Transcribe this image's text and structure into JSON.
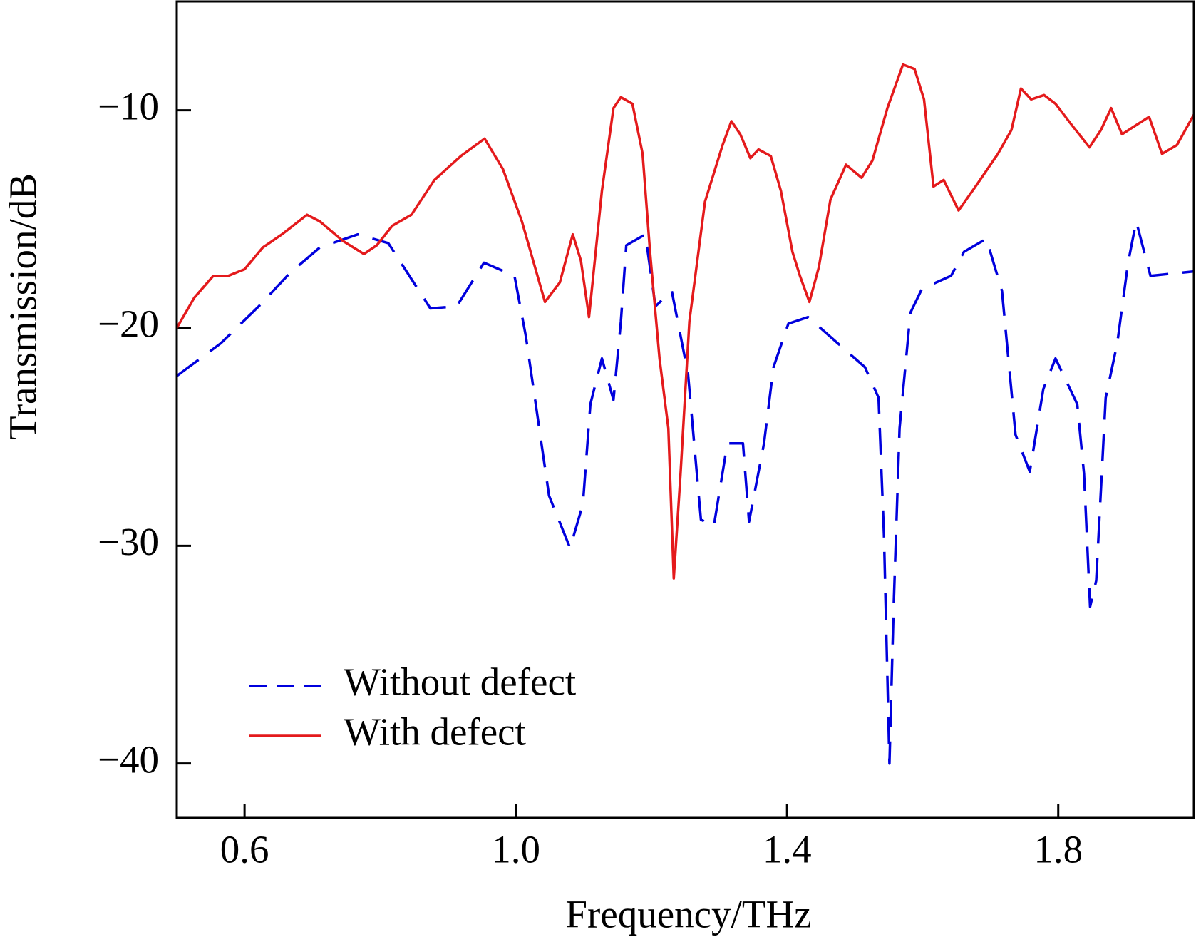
{
  "chart_data": {
    "type": "line",
    "xlabel": "Frequency/THz",
    "ylabel": "Transmission/dB",
    "xlim": [
      0.5,
      2.0
    ],
    "ylim": [
      -42.5,
      -5
    ],
    "xticks": [
      0.6,
      {
        "value": 1.0,
        "label": "1.0"
      },
      1.4,
      1.8
    ],
    "yticks": [
      {
        "value": -10,
        "label": "−10"
      },
      {
        "value": -20,
        "label": "−20"
      },
      {
        "value": -30,
        "label": "−30"
      },
      {
        "value": -40,
        "label": "−40"
      }
    ],
    "legend": "lower left",
    "series": [
      {
        "name": "Without defect",
        "color": "#0000dd",
        "style": "dashed",
        "x": [
          0.5,
          0.565,
          0.621,
          0.666,
          0.711,
          0.767,
          0.812,
          0.874,
          0.913,
          0.953,
          0.998,
          1.015,
          1.049,
          1.08,
          1.099,
          1.11,
          1.127,
          1.144,
          1.155,
          1.163,
          1.191,
          1.206,
          1.23,
          1.254,
          1.273,
          1.292,
          1.312,
          1.335,
          1.344,
          1.366,
          1.38,
          1.402,
          1.431,
          1.515,
          1.535,
          1.543,
          1.551,
          1.557,
          1.566,
          1.582,
          1.599,
          1.642,
          1.661,
          1.694,
          1.717,
          1.737,
          1.758,
          1.778,
          1.796,
          1.828,
          1.838,
          1.847,
          1.856,
          1.87,
          1.887,
          1.903,
          1.915,
          1.936,
          2.0
        ],
        "values": [
          -22.2,
          -20.7,
          -19.0,
          -17.5,
          -16.3,
          -15.7,
          -16.1,
          -19.1,
          -19.0,
          -17.0,
          -17.6,
          -20.4,
          -27.7,
          -30.1,
          -28.1,
          -23.5,
          -21.4,
          -23.3,
          -19.7,
          -16.2,
          -15.7,
          -19.0,
          -18.3,
          -22.1,
          -28.8,
          -29.1,
          -25.3,
          -25.3,
          -28.9,
          -25.3,
          -21.8,
          -19.8,
          -19.5,
          -21.8,
          -23.2,
          -29.5,
          -40.0,
          -33.0,
          -24.6,
          -19.3,
          -18.2,
          -17.6,
          -16.5,
          -15.9,
          -18.3,
          -24.9,
          -26.6,
          -22.8,
          -21.4,
          -23.5,
          -26.7,
          -32.8,
          -31.6,
          -23.2,
          -20.7,
          -17.0,
          -15.1,
          -17.6,
          -17.4
        ]
      },
      {
        "name": "With defect",
        "color": "#e41a1c",
        "style": "solid",
        "x": [
          0.5,
          0.526,
          0.554,
          0.576,
          0.6,
          0.627,
          0.655,
          0.692,
          0.711,
          0.745,
          0.776,
          0.795,
          0.818,
          0.846,
          0.88,
          0.919,
          0.954,
          0.981,
          1.009,
          1.043,
          1.065,
          1.084,
          1.096,
          1.108,
          1.127,
          1.144,
          1.155,
          1.172,
          1.187,
          1.198,
          1.212,
          1.225,
          1.233,
          1.243,
          1.256,
          1.279,
          1.305,
          1.318,
          1.331,
          1.346,
          1.358,
          1.376,
          1.391,
          1.408,
          1.419,
          1.433,
          1.447,
          1.464,
          1.487,
          1.51,
          1.526,
          1.548,
          1.571,
          1.588,
          1.602,
          1.616,
          1.631,
          1.653,
          1.678,
          1.711,
          1.731,
          1.745,
          1.76,
          1.779,
          1.796,
          1.818,
          1.846,
          1.863,
          1.878,
          1.894,
          1.914,
          1.934,
          1.953,
          1.975,
          2.0
        ],
        "values": [
          -20.0,
          -18.6,
          -17.6,
          -17.6,
          -17.3,
          -16.3,
          -15.7,
          -14.8,
          -15.1,
          -16.0,
          -16.6,
          -16.2,
          -15.3,
          -14.8,
          -13.2,
          -12.1,
          -11.3,
          -12.7,
          -15.1,
          -18.8,
          -17.9,
          -15.7,
          -16.9,
          -19.5,
          -13.7,
          -9.9,
          -9.4,
          -9.7,
          -12.0,
          -16.5,
          -21.4,
          -24.6,
          -31.5,
          -26.7,
          -19.7,
          -14.2,
          -11.6,
          -10.5,
          -11.1,
          -12.2,
          -11.8,
          -12.1,
          -13.7,
          -16.5,
          -17.6,
          -18.8,
          -17.2,
          -14.1,
          -12.5,
          -13.1,
          -12.3,
          -9.9,
          -7.9,
          -8.1,
          -9.5,
          -13.5,
          -13.2,
          -14.6,
          -13.5,
          -12.0,
          -10.9,
          -9.0,
          -9.5,
          -9.3,
          -9.7,
          -10.6,
          -11.7,
          -10.9,
          -9.9,
          -11.1,
          -10.7,
          -10.3,
          -12.0,
          -11.6,
          -10.2
        ]
      }
    ]
  }
}
